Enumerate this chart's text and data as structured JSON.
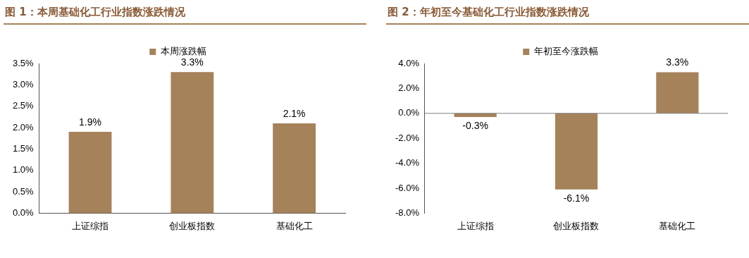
{
  "chart_data": [
    {
      "type": "bar",
      "title": "图 1：本周基础化工行业指数涨跌情况",
      "categories": [
        "上证综指",
        "创业板指数",
        "基础化工"
      ],
      "series": [
        {
          "name": "本周涨跌幅",
          "color": "#a6825a",
          "values": [
            1.9,
            3.3,
            2.1
          ],
          "value_labels": [
            "1.9%",
            "3.3%",
            "2.1%"
          ]
        }
      ],
      "ylim": [
        0,
        3.5
      ],
      "yticks": [
        {
          "value": 0,
          "label": "0.0%"
        },
        {
          "value": 0.5,
          "label": "0.5%"
        },
        {
          "value": 1,
          "label": "1.0%"
        },
        {
          "value": 1.5,
          "label": "1.5%"
        },
        {
          "value": 2,
          "label": "2.0%"
        },
        {
          "value": 2.5,
          "label": "2.5%"
        },
        {
          "value": 3,
          "label": "3.0%"
        },
        {
          "value": 3.5,
          "label": "3.5%"
        }
      ],
      "legend": "top"
    },
    {
      "type": "bar",
      "title": "图 2：年初至今基础化工行业指数涨跌情况",
      "categories": [
        "上证综指",
        "创业板指数",
        "基础化工"
      ],
      "series": [
        {
          "name": "年初至今涨跌幅",
          "color": "#a6825a",
          "values": [
            -0.3,
            -6.1,
            3.3
          ],
          "value_labels": [
            "-0.3%",
            "-6.1%",
            "3.3%"
          ]
        }
      ],
      "ylim": [
        -8,
        4
      ],
      "yticks": [
        {
          "value": -8,
          "label": "-8.0%"
        },
        {
          "value": -6,
          "label": "-6.0%"
        },
        {
          "value": -4,
          "label": "-4.0%"
        },
        {
          "value": -2,
          "label": "-2.0%"
        },
        {
          "value": 0,
          "label": "0.0%"
        },
        {
          "value": 2,
          "label": "2.0%"
        },
        {
          "value": 4,
          "label": "4.0%"
        }
      ],
      "ref_lines": [
        {
          "axis": "y",
          "value": 0,
          "color": "#7f7f7f"
        }
      ],
      "legend": "top"
    }
  ]
}
